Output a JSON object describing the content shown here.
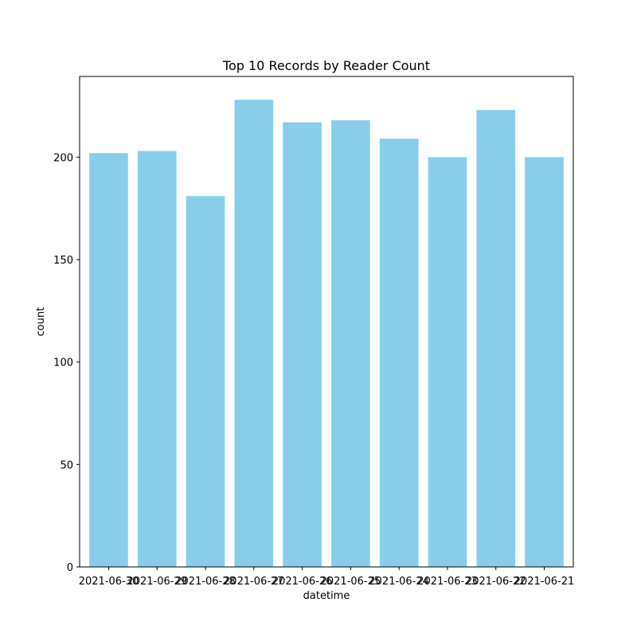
{
  "chart_data": {
    "type": "bar",
    "title": "Top 10 Records by Reader Count",
    "xlabel": "datetime",
    "ylabel": "count",
    "categories": [
      "2021-06-30",
      "2021-06-29",
      "2021-06-28",
      "2021-06-27",
      "2021-06-26",
      "2021-06-25",
      "2021-06-24",
      "2021-06-23",
      "2021-06-22",
      "2021-06-21"
    ],
    "values": [
      202,
      203,
      181,
      228,
      217,
      218,
      209,
      200,
      223,
      200
    ],
    "ylim": [
      0,
      239.4
    ],
    "yticks": [
      0,
      50,
      100,
      150,
      200
    ],
    "bar_color": "#87ceeb",
    "grid": false,
    "legend": false
  }
}
